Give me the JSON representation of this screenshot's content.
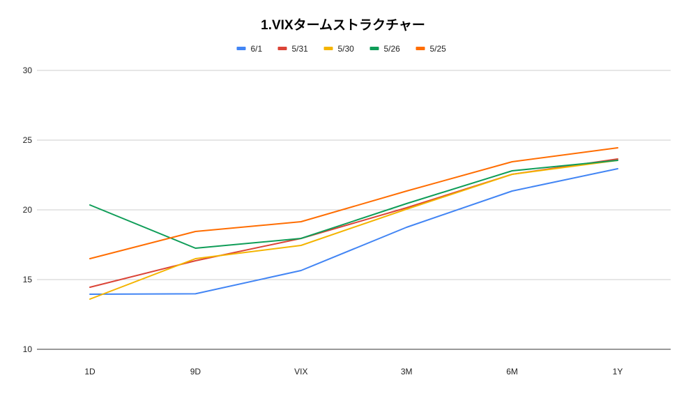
{
  "chart_data": {
    "type": "line",
    "title": "1.VIXタームストラクチャー",
    "xlabel": "",
    "ylabel": "",
    "categories": [
      "1D",
      "9D",
      "VIX",
      "3M",
      "6M",
      "1Y"
    ],
    "ylim": [
      10,
      30
    ],
    "yticks": [
      10,
      15,
      20,
      25,
      30
    ],
    "grid": true,
    "legend_position": "top",
    "series": [
      {
        "name": "6/1",
        "color": "#4285f4",
        "values": [
          13.95,
          13.98,
          15.65,
          18.75,
          21.35,
          22.95
        ]
      },
      {
        "name": "5/31",
        "color": "#db4437",
        "values": [
          14.45,
          16.35,
          17.95,
          20.15,
          22.55,
          23.65
        ]
      },
      {
        "name": "5/30",
        "color": "#f4b400",
        "values": [
          13.6,
          16.5,
          17.45,
          20.05,
          22.55,
          23.55
        ]
      },
      {
        "name": "5/26",
        "color": "#0f9d58",
        "values": [
          20.35,
          17.25,
          17.95,
          20.45,
          22.8,
          23.55
        ]
      },
      {
        "name": "5/25",
        "color": "#ff6d01",
        "values": [
          16.5,
          18.45,
          19.15,
          21.35,
          23.45,
          24.45
        ]
      }
    ]
  }
}
